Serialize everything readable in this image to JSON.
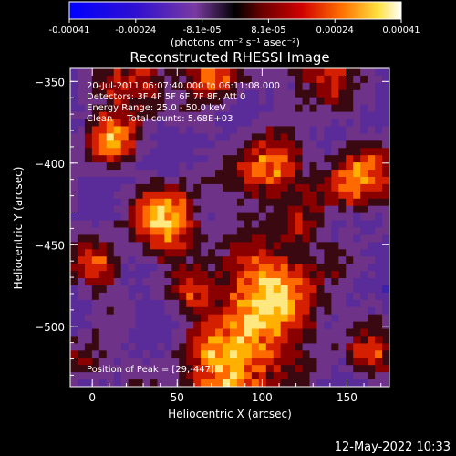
{
  "colorbar": {
    "ticks": [
      "-0.00041",
      "-0.00024",
      "-8.1e-05",
      "8.1e-05",
      "0.00024",
      "0.00041"
    ],
    "units": "(photons cm⁻² s⁻¹ asec⁻²)"
  },
  "plot": {
    "title": "Reconstructed RHESSI Image",
    "xlabel": "Heliocentric X (arcsec)",
    "ylabel": "Heliocentric Y (arcsec)",
    "xticks": [
      "0",
      "50",
      "100",
      "150"
    ],
    "yticks": [
      "-350",
      "-400",
      "-450",
      "-500"
    ],
    "annotations": {
      "line1": "20-Jul-2011 06:07:40.000 to 06:11:08.000",
      "line2": "Detectors: 3F 4F 5F 6F 7F 8F, Att 0",
      "line3": "Energy Range: 25.0 - 50.0 keV",
      "line4": "Clean     Total counts: 5.68E+03",
      "peak": "Position of Peak = [29,-447]"
    }
  },
  "footer": {
    "timestamp": "12-May-2022 10:33"
  },
  "chart_data": {
    "type": "heatmap",
    "title": "Reconstructed RHESSI Image",
    "xlabel": "Heliocentric X (arcsec)",
    "ylabel": "Heliocentric Y (arcsec)",
    "xlim": [
      -13,
      175
    ],
    "ylim": [
      -537,
      -342
    ],
    "colorbar_range": [
      -0.00041,
      0.00041
    ],
    "peak": [
      29,
      -447
    ]
  }
}
